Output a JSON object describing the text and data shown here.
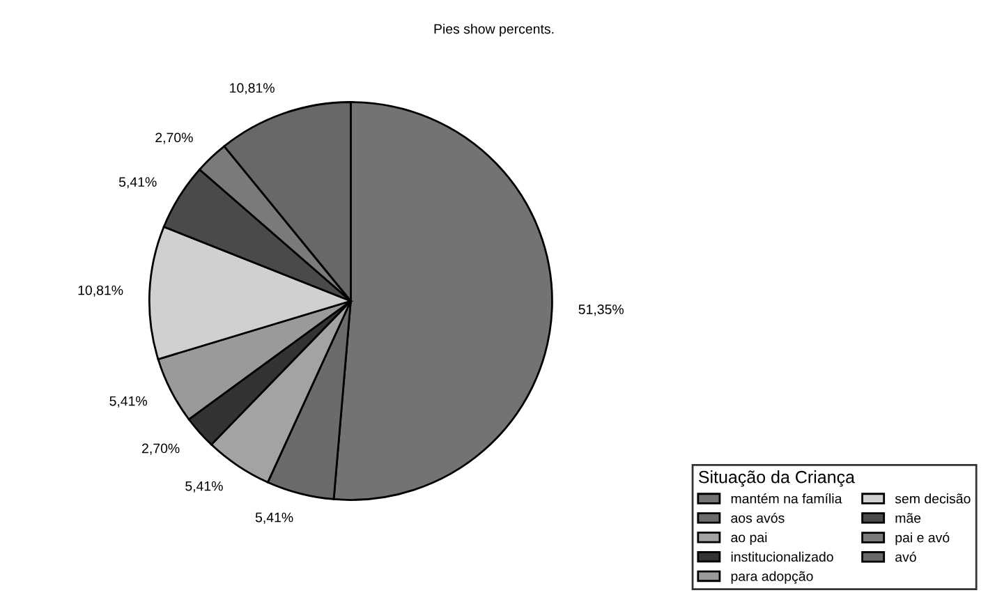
{
  "chart_data": {
    "type": "pie",
    "title": "Pies show percents.",
    "legend_title": "Situação da Criança",
    "legend": "bottom right",
    "categories": [
      "mantém na família",
      "aos avós",
      "ao pai",
      "institucionalizado",
      "para adopção",
      "sem decisão",
      "mãe",
      "pai e avó",
      "avó"
    ],
    "values": [
      51.35,
      5.41,
      5.41,
      2.7,
      5.41,
      10.81,
      5.41,
      2.7,
      10.81
    ],
    "value_labels": [
      "51,35%",
      "5,41%",
      "5,41%",
      "2,70%",
      "5,41%",
      "10,81%",
      "5,41%",
      "2,70%",
      "10,81%"
    ],
    "colors": [
      "#737373",
      "#6b6b6b",
      "#a3a3a3",
      "#333333",
      "#9a9a9a",
      "#d0d0d0",
      "#4a4a4a",
      "#7a7a7a",
      "#686868"
    ]
  }
}
